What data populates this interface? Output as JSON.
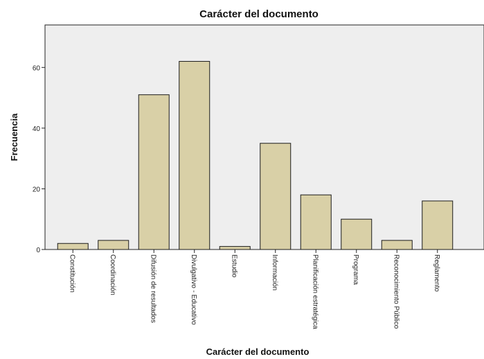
{
  "chart_data": {
    "type": "bar",
    "title": "Carácter del documento",
    "xlabel": "Carácter del documento",
    "ylabel": "Frecuencia",
    "categories": [
      "Constitución",
      "Coordinación",
      "Difusión de resultados",
      "Divulgativo - Educativo",
      "Estudio",
      "Información",
      "Planificación estratégica",
      "Programa",
      "Reconocimiento Público",
      "Reglamento"
    ],
    "values": [
      2,
      3,
      51,
      62,
      1,
      35,
      18,
      10,
      3,
      16
    ],
    "yticks": [
      0,
      20,
      40,
      60
    ],
    "ylim": [
      0,
      74
    ],
    "grid": false,
    "legend": "none",
    "colors": {
      "bar": "#d9d0a7",
      "plot_background": "#eeeeee"
    }
  }
}
